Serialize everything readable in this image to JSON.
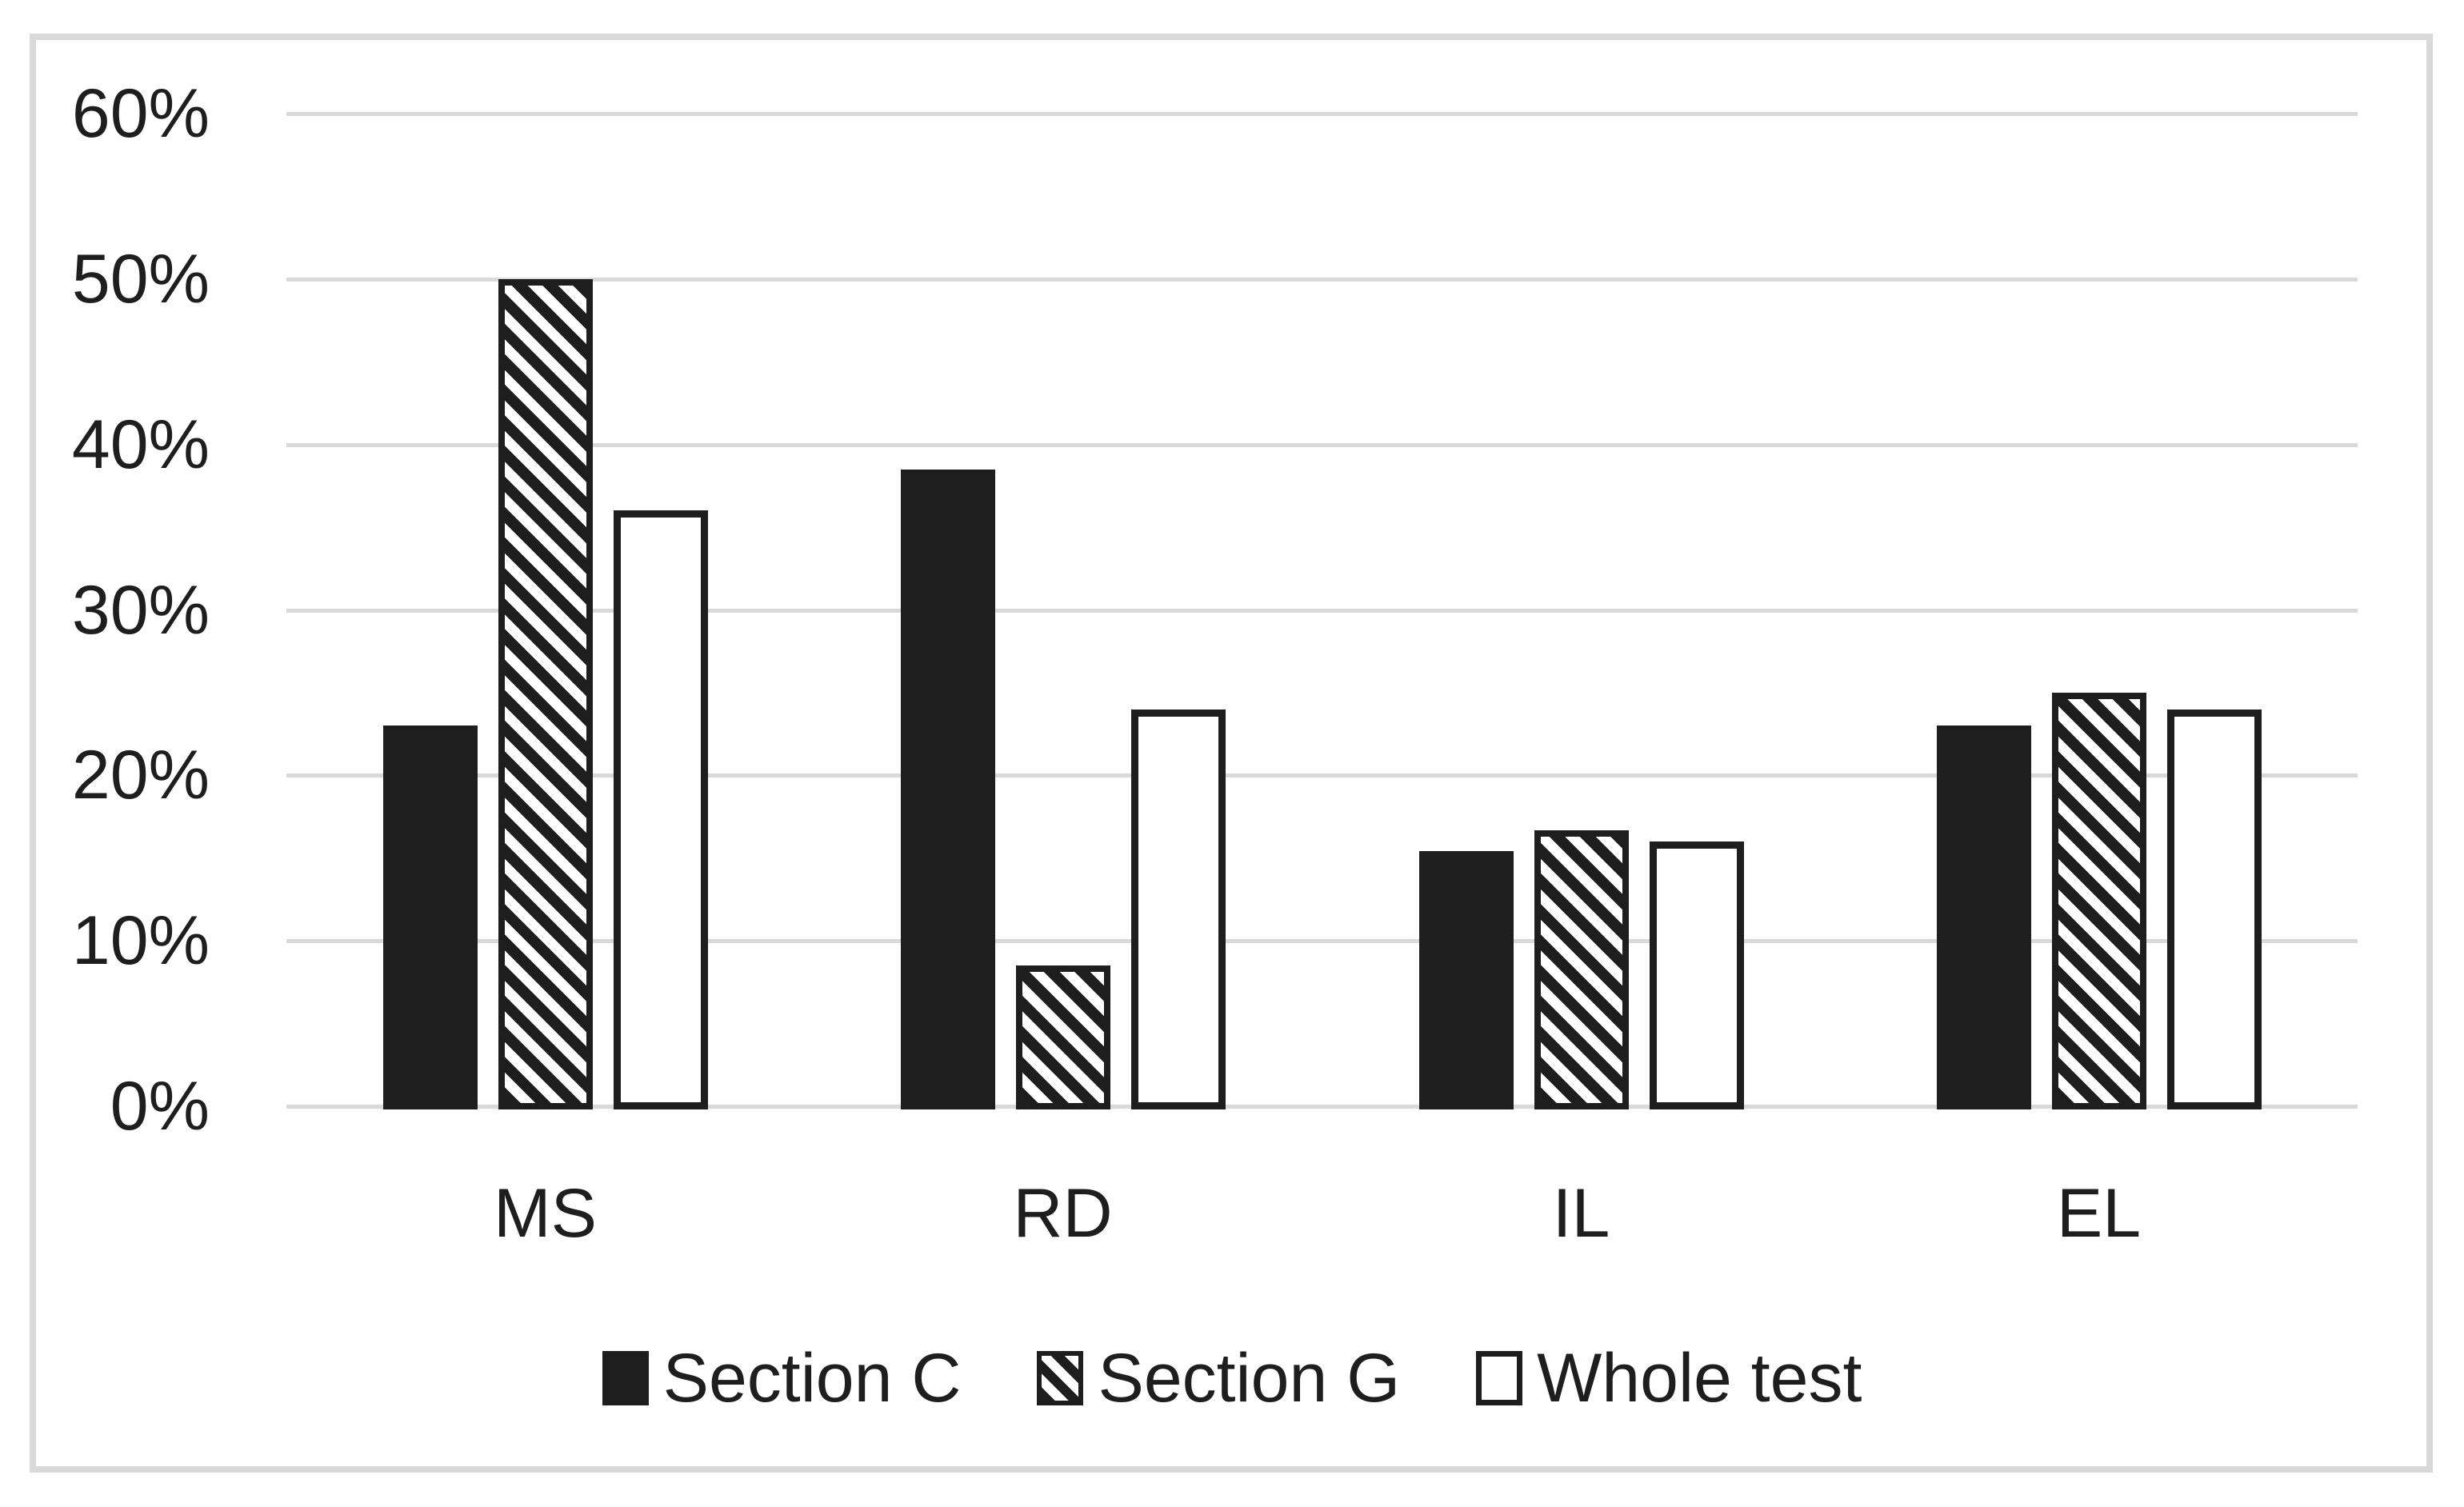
{
  "chart_data": {
    "type": "bar",
    "title": "",
    "categories": [
      "MS",
      "RD",
      "IL",
      "EL"
    ],
    "series": [
      {
        "name": "Section C",
        "pattern": "solid",
        "values": [
          23,
          38.5,
          15.4,
          23
        ]
      },
      {
        "name": "Section G",
        "pattern": "diagonal-hatch",
        "values": [
          50,
          8.5,
          16.7,
          25
        ]
      },
      {
        "name": "Whole test",
        "pattern": "outline",
        "values": [
          36,
          24,
          16,
          24
        ]
      }
    ],
    "unit": "%",
    "ylim": [
      0,
      60
    ],
    "ytick_step": 10,
    "ytick_labels": [
      "60%",
      "50%",
      "40%",
      "30%",
      "20%",
      "10%",
      "0%"
    ],
    "grid": true,
    "gridline_color": "#d9d9d9",
    "frame_border_color": "#d9d9d9",
    "ink_color": "#1e1e1e",
    "background_color": "#ffffff",
    "legend_position": "bottom-center",
    "xlabel": "",
    "ylabel": ""
  }
}
